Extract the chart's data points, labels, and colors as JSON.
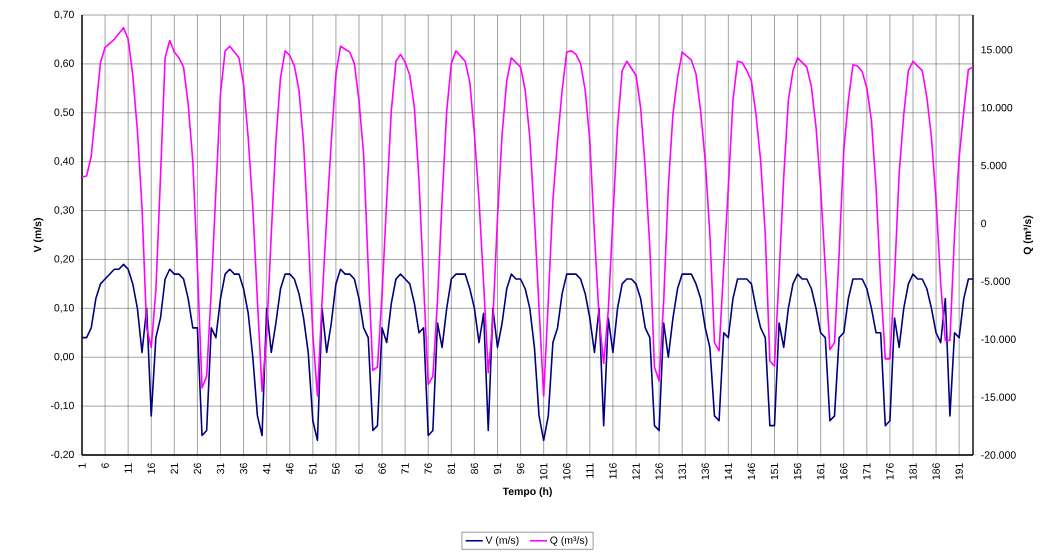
{
  "chart_data": {
    "type": "line",
    "xlabel": "Tempo (h)",
    "ylabel": "V (m/s)",
    "y2label": "Q (m³/s)",
    "xlim": [
      1,
      194
    ],
    "xticks": [
      1,
      6,
      11,
      16,
      21,
      26,
      31,
      36,
      41,
      46,
      51,
      56,
      61,
      66,
      71,
      76,
      81,
      86,
      91,
      96,
      101,
      106,
      111,
      116,
      121,
      126,
      131,
      136,
      141,
      146,
      151,
      156,
      161,
      166,
      171,
      176,
      181,
      186,
      191
    ],
    "ylim": [
      -0.2,
      0.7
    ],
    "yticks": [
      {
        "value": -0.2,
        "label": "-0,20"
      },
      {
        "value": -0.1,
        "label": "-0,10"
      },
      {
        "value": 0,
        "label": "0,00"
      },
      {
        "value": 0.1,
        "label": "0,10"
      },
      {
        "value": 0.2,
        "label": "0,20"
      },
      {
        "value": 0.3,
        "label": "0,30"
      },
      {
        "value": 0.4,
        "label": "0,40"
      },
      {
        "value": 0.5,
        "label": "0,50"
      },
      {
        "value": 0.6,
        "label": "0,60"
      },
      {
        "value": 0.7,
        "label": "0,70"
      }
    ],
    "y2lim": [
      -20000,
      18000
    ],
    "y2ticks": [
      {
        "value": -20000,
        "label": "-20.000"
      },
      {
        "value": -15000,
        "label": "-15.000"
      },
      {
        "value": -10000,
        "label": "-10.000"
      },
      {
        "value": -5000,
        "label": "-5.000"
      },
      0,
      {
        "value": 5000,
        "label": "5.000"
      },
      {
        "value": 10000,
        "label": "10.000"
      },
      {
        "value": 15000,
        "label": "15.000"
      }
    ],
    "grid": true,
    "legend": "bottom",
    "series": [
      {
        "name": "V (m/s)",
        "color": "#000080",
        "x": [
          1,
          2,
          3,
          4,
          5,
          6,
          8,
          9,
          10,
          11,
          12,
          13,
          14,
          15,
          16,
          17,
          18,
          19,
          20,
          21,
          22,
          23,
          24,
          25,
          26,
          27,
          28,
          29,
          30,
          31,
          32,
          33,
          34,
          35,
          36,
          37,
          38,
          39,
          40,
          41,
          42,
          43,
          44,
          45,
          46,
          47,
          48,
          49,
          50,
          51,
          52,
          53,
          54,
          55,
          56,
          57,
          58,
          59,
          60,
          61,
          62,
          63,
          64,
          65,
          66,
          67,
          68,
          69,
          70,
          71,
          72,
          73,
          74,
          75,
          76,
          77,
          78,
          79,
          80,
          81,
          82,
          84,
          85,
          86,
          87,
          88,
          89,
          90,
          91,
          92,
          93,
          94,
          95,
          96,
          97,
          98,
          99,
          100,
          101,
          102,
          103,
          104,
          105,
          106,
          108,
          109,
          110,
          111,
          112,
          113,
          114,
          115,
          116,
          117,
          118,
          119,
          120,
          121,
          122,
          123,
          124,
          125,
          126,
          127,
          128,
          129,
          130,
          131,
          133,
          134,
          135,
          136,
          137,
          138,
          139,
          140,
          141,
          142,
          143,
          145,
          146,
          147,
          148,
          149,
          150,
          151,
          152,
          153,
          154,
          155,
          156,
          157,
          158,
          159,
          160,
          161,
          162,
          163,
          164,
          165,
          166,
          167,
          168,
          170,
          171,
          172,
          173,
          174,
          175,
          176,
          177,
          178,
          179,
          180,
          181,
          182,
          183,
          184,
          185,
          186,
          187,
          188,
          189,
          190,
          191,
          192,
          193,
          194
        ],
        "values": [
          0.04,
          0.04,
          0.06,
          0.12,
          0.15,
          0.16,
          0.18,
          0.18,
          0.19,
          0.18,
          0.15,
          0.1,
          0.01,
          0.1,
          -0.12,
          0.04,
          0.08,
          0.16,
          0.18,
          0.17,
          0.17,
          0.16,
          0.12,
          0.06,
          0.06,
          -0.16,
          -0.15,
          0.06,
          0.04,
          0.12,
          0.17,
          0.18,
          0.17,
          0.17,
          0.14,
          0.09,
          0.0,
          -0.12,
          -0.16,
          0.1,
          0.01,
          0.07,
          0.14,
          0.17,
          0.17,
          0.16,
          0.13,
          0.08,
          0.01,
          -0.13,
          -0.17,
          0.1,
          0.01,
          0.07,
          0.15,
          0.18,
          0.17,
          0.17,
          0.16,
          0.12,
          0.06,
          0.04,
          -0.15,
          -0.14,
          0.06,
          0.03,
          0.11,
          0.16,
          0.17,
          0.16,
          0.15,
          0.11,
          0.05,
          0.06,
          -0.16,
          -0.15,
          0.07,
          0.02,
          0.1,
          0.16,
          0.17,
          0.17,
          0.14,
          0.1,
          0.03,
          0.09,
          -0.15,
          0.1,
          0.02,
          0.07,
          0.14,
          0.17,
          0.16,
          0.16,
          0.14,
          0.1,
          0.02,
          -0.12,
          -0.17,
          -0.12,
          0.03,
          0.06,
          0.13,
          0.17,
          0.17,
          0.16,
          0.13,
          0.08,
          0.01,
          0.1,
          -0.14,
          0.08,
          0.01,
          0.1,
          0.15,
          0.16,
          0.16,
          0.15,
          0.12,
          0.06,
          0.04,
          -0.14,
          -0.15,
          0.07,
          0.0,
          0.08,
          0.14,
          0.17,
          0.17,
          0.15,
          0.12,
          0.06,
          0.02,
          -0.12,
          -0.13,
          0.05,
          0.04,
          0.12,
          0.16,
          0.16,
          0.15,
          0.1,
          0.06,
          0.04,
          -0.14,
          -0.14,
          0.07,
          0.02,
          0.1,
          0.15,
          0.17,
          0.16,
          0.16,
          0.14,
          0.1,
          0.05,
          0.04,
          -0.13,
          -0.12,
          0.04,
          0.05,
          0.12,
          0.16,
          0.16,
          0.14,
          0.1,
          0.05,
          0.05,
          -0.14,
          -0.13,
          0.08,
          0.02,
          0.1,
          0.15,
          0.17,
          0.16,
          0.16,
          0.14,
          0.1,
          0.05,
          0.03,
          0.12,
          -0.12,
          0.05,
          0.04,
          0.12,
          0.16,
          0.16
        ]
      },
      {
        "name": "Q (m³/s)",
        "color": "#ff00ff",
        "axis": "y2",
        "x": [
          1,
          2,
          3,
          5,
          6,
          8,
          10,
          11,
          12,
          13,
          14,
          15,
          16,
          17,
          18,
          19,
          20,
          21,
          22,
          23,
          24,
          25,
          26,
          27,
          28,
          29,
          30,
          31,
          32,
          33,
          35,
          36,
          37,
          38,
          39,
          40,
          41,
          42,
          43,
          44,
          45,
          46,
          47,
          48,
          49,
          50,
          51,
          52,
          53,
          54,
          55,
          56,
          57,
          59,
          60,
          61,
          62,
          63,
          64,
          65,
          66,
          67,
          68,
          69,
          70,
          71,
          72,
          73,
          74,
          75,
          76,
          77,
          78,
          79,
          80,
          81,
          82,
          84,
          85,
          86,
          87,
          88,
          89,
          90,
          91,
          92,
          93,
          94,
          96,
          97,
          98,
          99,
          100,
          101,
          102,
          103,
          104,
          105,
          106,
          107,
          108,
          109,
          110,
          111,
          112,
          113,
          114,
          115,
          116,
          117,
          118,
          119,
          121,
          122,
          123,
          124,
          125,
          126,
          127,
          128,
          129,
          130,
          131,
          133,
          134,
          135,
          136,
          137,
          138,
          139,
          140,
          141,
          142,
          143,
          144,
          145,
          146,
          147,
          148,
          149,
          150,
          151,
          152,
          153,
          154,
          155,
          156,
          158,
          159,
          160,
          161,
          162,
          163,
          164,
          165,
          166,
          167,
          168,
          169,
          170,
          171,
          172,
          173,
          174,
          175,
          176,
          177,
          178,
          179,
          180,
          181,
          183,
          184,
          185,
          186,
          187,
          188,
          189,
          190,
          191,
          192,
          193,
          194
        ],
        "values": [
          4000,
          4100,
          5800,
          13900,
          15200,
          15900,
          16900,
          15900,
          12800,
          8000,
          1400,
          -9000,
          -10700,
          -5800,
          4000,
          14300,
          15800,
          14800,
          14300,
          13500,
          10300,
          5400,
          -3800,
          -14200,
          -13200,
          -5800,
          2800,
          11200,
          14900,
          15300,
          14300,
          12000,
          7400,
          1400,
          -6700,
          -14500,
          -9600,
          -900,
          7100,
          12600,
          14900,
          14500,
          13600,
          11500,
          6900,
          -900,
          -9600,
          -14900,
          -6700,
          500,
          7100,
          12900,
          15300,
          14800,
          13800,
          10600,
          6000,
          -3800,
          -12700,
          -12400,
          -6100,
          2000,
          9700,
          14000,
          14600,
          13900,
          12800,
          10000,
          3700,
          -5200,
          -13900,
          -13200,
          -6700,
          2000,
          9700,
          13800,
          14900,
          14000,
          12200,
          7700,
          2000,
          -5200,
          -12900,
          -8400,
          500,
          7700,
          12300,
          14300,
          13500,
          11500,
          7400,
          500,
          -7300,
          -14900,
          -6700,
          2000,
          7100,
          11500,
          14800,
          14900,
          14600,
          13800,
          11500,
          7100,
          -900,
          -8100,
          -12100,
          -7500,
          500,
          8300,
          13200,
          14000,
          12800,
          10000,
          4800,
          -2100,
          -12400,
          -13600,
          -6700,
          3100,
          9400,
          12600,
          14800,
          14100,
          12900,
          9700,
          5400,
          -900,
          -10300,
          -11000,
          -3800,
          3100,
          10600,
          14000,
          13900,
          13200,
          12300,
          9400,
          5400,
          -900,
          -11900,
          -12300,
          -4400,
          4000,
          10600,
          13200,
          14300,
          13500,
          11800,
          8300,
          3000,
          -3800,
          -10900,
          -10300,
          -2600,
          6300,
          10600,
          13700,
          13600,
          13100,
          11700,
          8900,
          3100,
          -5200,
          -11700,
          -11700,
          -4700,
          4300,
          9400,
          13200,
          14000,
          13200,
          10900,
          7400,
          2000,
          -5200,
          -10100,
          -10100,
          -900,
          5700,
          9700,
          13300,
          13500
        ]
      }
    ]
  }
}
